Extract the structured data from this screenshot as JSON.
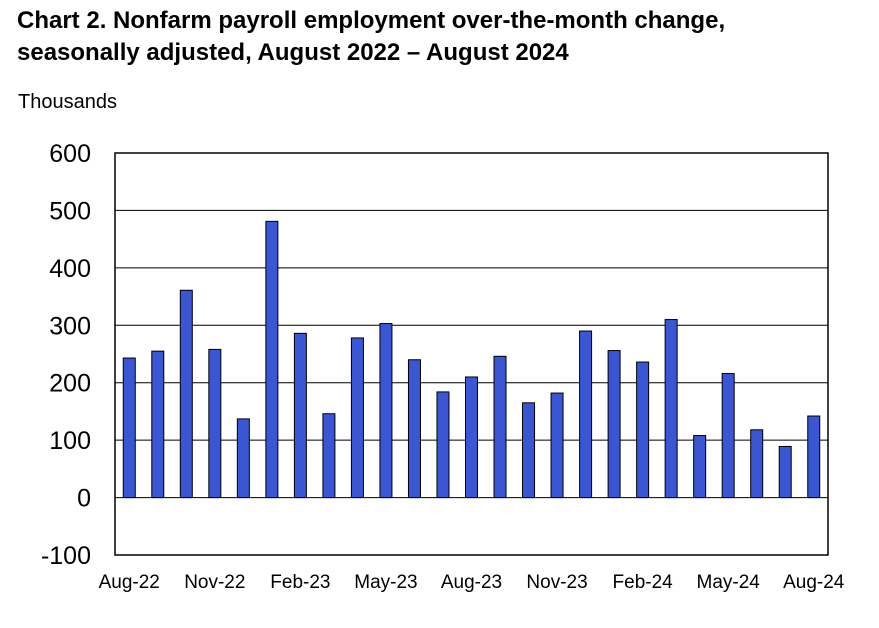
{
  "title_line1": "Chart 2. Nonfarm payroll employment over-the-month change,",
  "title_line2": "seasonally adjusted, August 2022 – August 2024",
  "chart_data": {
    "type": "bar",
    "title": "Chart 2. Nonfarm payroll employment over-the-month change, seasonally adjusted, August 2022 – August 2024",
    "ylabel": "Thousands",
    "xlabel": "",
    "ylim": [
      -100,
      600
    ],
    "yticks": [
      -100,
      0,
      100,
      200,
      300,
      400,
      500,
      600
    ],
    "grid": true,
    "legend": "none",
    "bar_color": "#3a56d4",
    "bar_outline": "#000000",
    "categories": [
      "Aug-22",
      "Sep-22",
      "Oct-22",
      "Nov-22",
      "Dec-22",
      "Jan-23",
      "Feb-23",
      "Mar-23",
      "Apr-23",
      "May-23",
      "Jun-23",
      "Jul-23",
      "Aug-23",
      "Sep-23",
      "Oct-23",
      "Nov-23",
      "Dec-23",
      "Jan-24",
      "Feb-24",
      "Mar-24",
      "Apr-24",
      "May-24",
      "Jun-24",
      "Jul-24",
      "Aug-24"
    ],
    "x_tick_labels": [
      "Aug-22",
      "Nov-22",
      "Feb-23",
      "May-23",
      "Aug-23",
      "Nov-23",
      "Feb-24",
      "May-24",
      "Aug-24"
    ],
    "values": [
      243,
      255,
      361,
      258,
      137,
      481,
      286,
      146,
      278,
      303,
      240,
      184,
      210,
      246,
      165,
      182,
      290,
      256,
      236,
      310,
      108,
      216,
      118,
      89,
      142
    ]
  }
}
